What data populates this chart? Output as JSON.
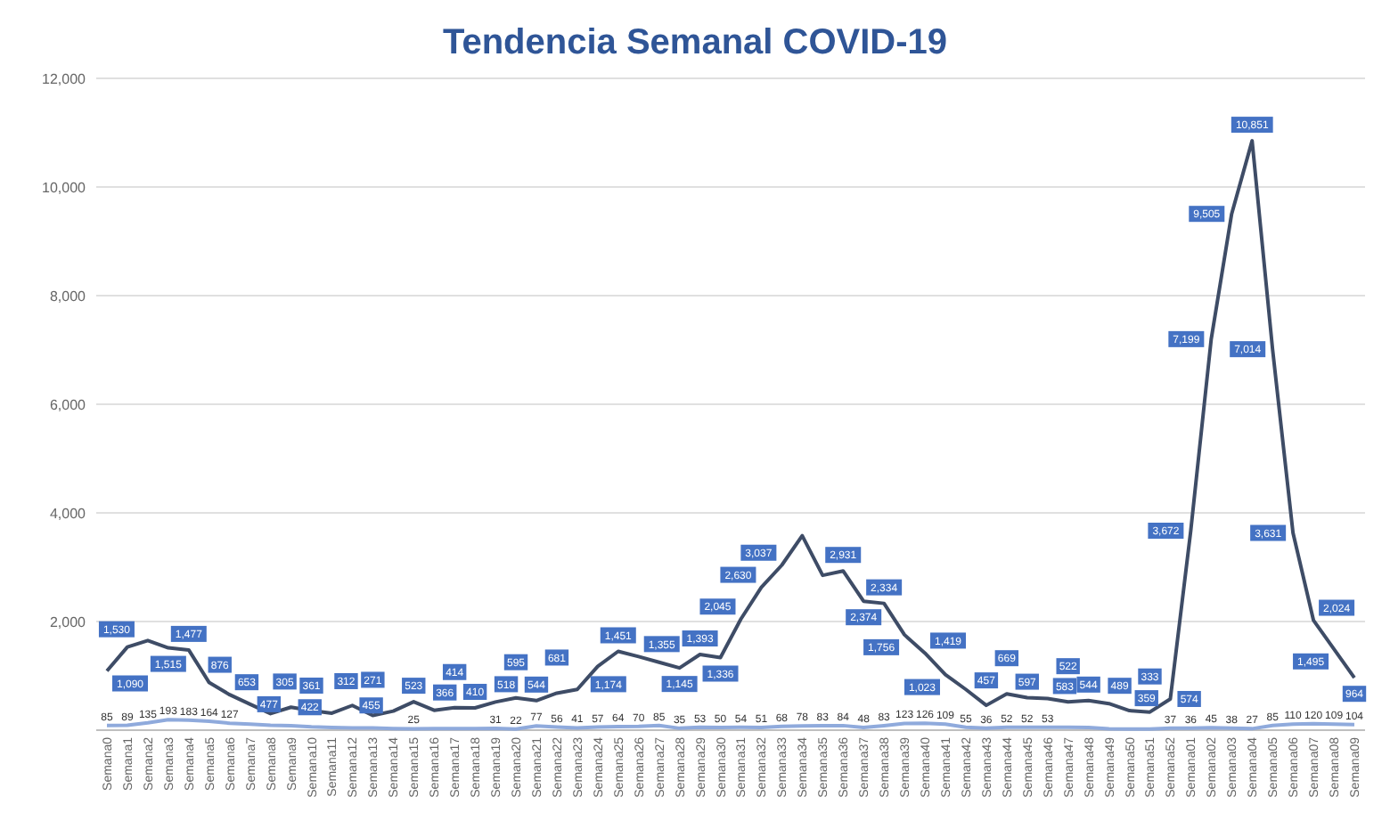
{
  "chart_data": {
    "type": "line",
    "title": "Tendencia Semanal COVID-19",
    "categories": [
      "Semana0",
      "Semana1",
      "Semana2",
      "Semana3",
      "Semana4",
      "Semana5",
      "Semana6",
      "Semana7",
      "Semana8",
      "Semana9",
      "Semana10",
      "Semana11",
      "Semana12",
      "Semana13",
      "Semana14",
      "Semana15",
      "Semana16",
      "Semana17",
      "Semana18",
      "Semana19",
      "Semana20",
      "Semana21",
      "Semana22",
      "Semana23",
      "Semana24",
      "Semana25",
      "Semana26",
      "Semana27",
      "Semana28",
      "Semana29",
      "Semana30",
      "Semana31",
      "Semana32",
      "Semana33",
      "Semana34",
      "Semana35",
      "Semana36",
      "Semana37",
      "Semana38",
      "Semana39",
      "Semana40",
      "Semana41",
      "Semana42",
      "Semana43",
      "Semana44",
      "Semana45",
      "Semana46",
      "Semana47",
      "Semana48",
      "Semana49",
      "Semana50",
      "Semana51",
      "Semana52",
      "Semana01",
      "Semana02",
      "Semana03",
      "Semana04",
      "Semana05",
      "Semana06",
      "Semana07",
      "Semana08",
      "Semana09"
    ],
    "series": [
      {
        "color": "#3e4c66",
        "values": [
          1090,
          1530,
          1650,
          1515,
          1477,
          876,
          653,
          477,
          305,
          422,
          361,
          312,
          455,
          271,
          350,
          523,
          366,
          414,
          410,
          518,
          595,
          544,
          681,
          750,
          1174,
          1451,
          1355,
          1250,
          1145,
          1393,
          1336,
          2045,
          2630,
          3037,
          3580,
          2850,
          2931,
          2374,
          2334,
          1756,
          1419,
          1023,
          750,
          457,
          669,
          597,
          583,
          522,
          544,
          489,
          359,
          333,
          574,
          3672,
          7199,
          9505,
          10851,
          7014,
          3631,
          2024,
          1495,
          964
        ],
        "value_labels": [
          "1,090",
          "1,530",
          null,
          "1,515",
          "1,477",
          "876",
          "653",
          "477",
          "305",
          "422",
          "361",
          "312",
          "455",
          "271",
          null,
          "523",
          "366",
          "414",
          "410",
          "518",
          "595",
          "544",
          "681",
          null,
          "1,174",
          "1,451",
          "1,355",
          null,
          "1,145",
          "1,393",
          "1,336",
          "2,045",
          "2,630",
          "3,037",
          null,
          null,
          "2,931",
          "2,374",
          "2,334",
          "1,756",
          "1,419",
          "1,023",
          null,
          "457",
          "669",
          "597",
          "583",
          "522",
          "544",
          "489",
          "359",
          "333",
          "574",
          "3,672",
          "7,199",
          "9,505",
          "10,851",
          "7,014",
          "3,631",
          "2,024",
          "1,495",
          "964"
        ]
      },
      {
        "color": "#8faadc",
        "values": [
          85,
          89,
          135,
          193,
          183,
          164,
          127,
          110,
          90,
          80,
          60,
          50,
          40,
          40,
          30,
          25,
          30,
          30,
          30,
          31,
          22,
          77,
          56,
          41,
          57,
          64,
          70,
          85,
          35,
          53,
          50,
          54,
          51,
          68,
          78,
          83,
          84,
          48,
          83,
          123,
          126,
          109,
          55,
          36,
          52,
          52,
          53,
          55,
          49,
          26,
          22,
          20,
          37,
          36,
          45,
          38,
          27,
          85,
          110,
          120,
          109,
          104
        ],
        "value_labels": [
          "85",
          "89",
          "135",
          "193",
          "183",
          "164",
          "127",
          null,
          null,
          null,
          null,
          null,
          null,
          null,
          null,
          "25",
          null,
          null,
          null,
          "31",
          "22",
          "77",
          "56",
          "41",
          "57",
          "64",
          "70",
          "85",
          "35",
          "53",
          "50",
          "54",
          "51",
          "68",
          "78",
          "83",
          "84",
          "48",
          "83",
          "123",
          "126",
          "109",
          "55",
          "36",
          "52",
          "52",
          "53",
          null,
          null,
          null,
          null,
          null,
          "37",
          "36",
          "45",
          "38",
          "27",
          "85",
          "110",
          "120",
          "109",
          "104"
        ]
      }
    ],
    "ylim": [
      0,
      12000
    ],
    "yticks": [
      {
        "value": 0,
        "label": null
      },
      {
        "value": 2000,
        "label": "2,000"
      },
      {
        "value": 4000,
        "label": "4,000"
      },
      {
        "value": 6000,
        "label": "6,000"
      },
      {
        "value": 8000,
        "label": "8,000"
      },
      {
        "value": 10000,
        "label": "10,000"
      },
      {
        "value": 12000,
        "label": "12,000"
      }
    ],
    "grid": "y",
    "marker": "none",
    "line_style": "solid"
  }
}
